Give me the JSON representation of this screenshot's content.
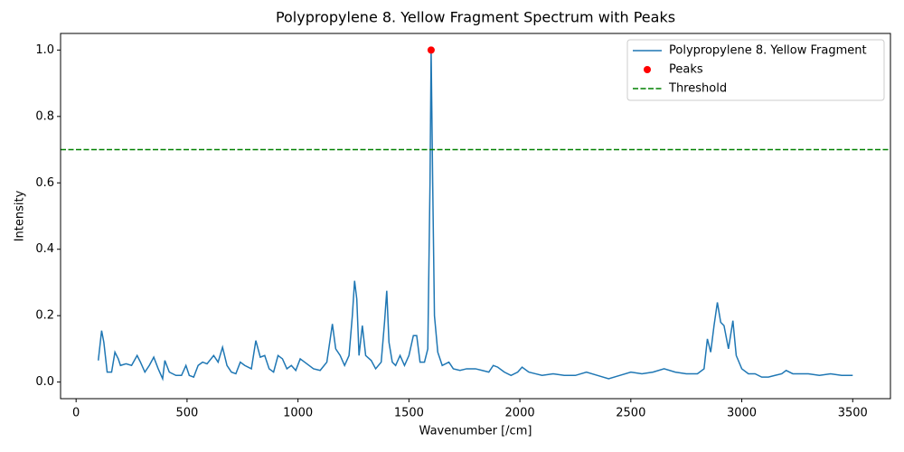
{
  "chart_data": {
    "type": "line",
    "title": "Polypropylene 8. Yellow Fragment Spectrum with Peaks",
    "x_label": "Wavenumber [/cm]",
    "y_label": "Intensity",
    "x": [
      100,
      115,
      125,
      140,
      160,
      175,
      190,
      200,
      225,
      250,
      275,
      290,
      310,
      330,
      350,
      370,
      390,
      400,
      420,
      450,
      475,
      495,
      510,
      530,
      550,
      570,
      590,
      620,
      640,
      660,
      680,
      700,
      720,
      740,
      760,
      790,
      810,
      830,
      850,
      870,
      890,
      910,
      930,
      950,
      970,
      990,
      1010,
      1040,
      1070,
      1100,
      1130,
      1155,
      1170,
      1190,
      1210,
      1230,
      1245,
      1255,
      1265,
      1275,
      1290,
      1305,
      1330,
      1350,
      1375,
      1390,
      1400,
      1410,
      1425,
      1440,
      1460,
      1480,
      1500,
      1520,
      1535,
      1550,
      1570,
      1585,
      1595,
      1600,
      1607,
      1615,
      1630,
      1650,
      1680,
      1700,
      1730,
      1760,
      1800,
      1830,
      1860,
      1880,
      1900,
      1930,
      1960,
      1990,
      2010,
      2040,
      2070,
      2100,
      2150,
      2200,
      2250,
      2300,
      2350,
      2400,
      2450,
      2500,
      2550,
      2600,
      2650,
      2700,
      2750,
      2800,
      2830,
      2845,
      2860,
      2875,
      2890,
      2905,
      2920,
      2940,
      2960,
      2975,
      3000,
      3030,
      3060,
      3090,
      3120,
      3150,
      3180,
      3200,
      3230,
      3260,
      3300,
      3350,
      3400,
      3450,
      3500
    ],
    "series": [
      {
        "name": "Polypropylene 8. Yellow Fragment",
        "color": "#1f77b4",
        "values": [
          0.065,
          0.155,
          0.12,
          0.03,
          0.03,
          0.09,
          0.07,
          0.05,
          0.055,
          0.05,
          0.08,
          0.06,
          0.03,
          0.05,
          0.075,
          0.04,
          0.01,
          0.065,
          0.03,
          0.02,
          0.02,
          0.05,
          0.02,
          0.015,
          0.05,
          0.06,
          0.055,
          0.08,
          0.06,
          0.105,
          0.05,
          0.03,
          0.025,
          0.06,
          0.05,
          0.04,
          0.125,
          0.075,
          0.08,
          0.04,
          0.03,
          0.08,
          0.07,
          0.04,
          0.05,
          0.035,
          0.07,
          0.055,
          0.04,
          0.035,
          0.06,
          0.175,
          0.1,
          0.08,
          0.05,
          0.08,
          0.2,
          0.305,
          0.25,
          0.08,
          0.17,
          0.08,
          0.065,
          0.04,
          0.06,
          0.18,
          0.275,
          0.12,
          0.06,
          0.05,
          0.08,
          0.05,
          0.08,
          0.14,
          0.14,
          0.06,
          0.06,
          0.1,
          0.6,
          1.0,
          0.6,
          0.2,
          0.09,
          0.05,
          0.06,
          0.04,
          0.035,
          0.04,
          0.04,
          0.035,
          0.03,
          0.05,
          0.045,
          0.03,
          0.02,
          0.03,
          0.045,
          0.03,
          0.025,
          0.02,
          0.025,
          0.02,
          0.02,
          0.03,
          0.02,
          0.01,
          0.02,
          0.03,
          0.025,
          0.03,
          0.04,
          0.03,
          0.025,
          0.025,
          0.04,
          0.13,
          0.09,
          0.17,
          0.24,
          0.18,
          0.17,
          0.1,
          0.185,
          0.08,
          0.04,
          0.025,
          0.025,
          0.015,
          0.015,
          0.02,
          0.025,
          0.035,
          0.025,
          0.025,
          0.025,
          0.02,
          0.025,
          0.02,
          0.02
        ]
      }
    ],
    "peaks": {
      "name": "Peaks",
      "color": "#ff0000",
      "x": [
        1600
      ],
      "values": [
        1.0
      ]
    },
    "threshold": {
      "name": "Threshold",
      "color": "#008000",
      "value": 0.7
    },
    "xlim": [
      -70,
      3670
    ],
    "ylim": [
      -0.05,
      1.05
    ],
    "xticks": [
      0,
      500,
      1000,
      1500,
      2000,
      2500,
      3000,
      3500
    ],
    "yticks": [
      {
        "value": 0,
        "label": "0.0"
      },
      0.2,
      0.4,
      0.6,
      0.8,
      {
        "value": 1,
        "label": "1.0"
      }
    ],
    "legend": "upper right"
  }
}
